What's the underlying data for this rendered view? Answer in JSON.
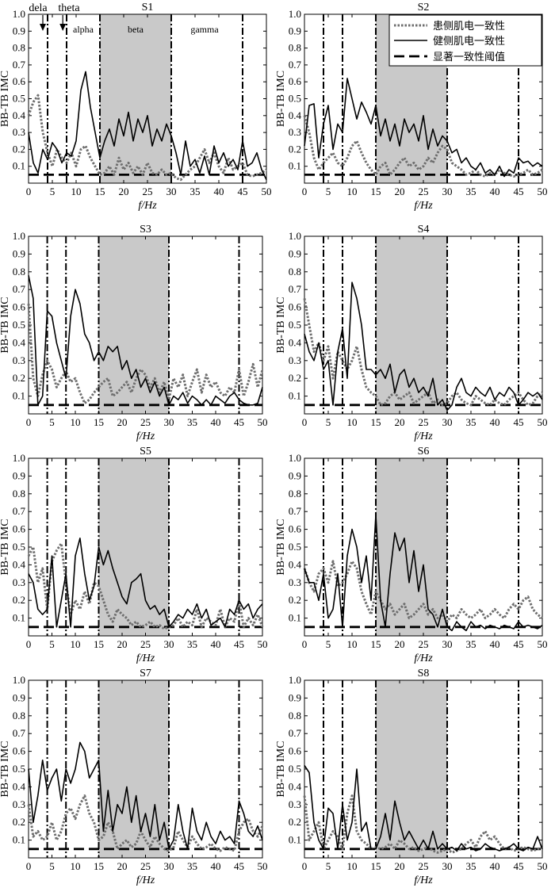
{
  "chart_data": {
    "type": "line",
    "x_label": "f/Hz",
    "y_label": "BB-TB IMC",
    "xlim": [
      0,
      50
    ],
    "ylim": [
      0,
      1.0
    ],
    "x_ticks": [
      0,
      5,
      10,
      15,
      20,
      25,
      30,
      35,
      40,
      45,
      50
    ],
    "y_ticks": [
      "0.1",
      "0.2",
      "0.3",
      "0.4",
      "0.5",
      "0.6",
      "0.7",
      "0.8",
      "0.9",
      "1.0"
    ],
    "x": [
      0,
      1,
      2,
      3,
      4,
      5,
      6,
      7,
      8,
      9,
      10,
      11,
      12,
      13,
      14,
      15,
      16,
      17,
      18,
      19,
      20,
      21,
      22,
      23,
      24,
      25,
      26,
      27,
      28,
      29,
      30,
      31,
      32,
      33,
      34,
      35,
      36,
      37,
      38,
      39,
      40,
      41,
      42,
      43,
      44,
      45,
      46,
      47,
      48,
      49,
      50
    ],
    "legend": {
      "placement": "top-right of S2",
      "entries": [
        "患侧肌电一致性",
        "健侧肌电一致性",
        "显著一致性阈值"
      ]
    },
    "series_styles": {
      "affected": "gray dotted",
      "healthy": "black solid",
      "threshold": "black dashed"
    },
    "band_annotations": {
      "top_labels": [
        "dela",
        "theta"
      ],
      "inside_labels": [
        "alpha",
        "beta",
        "gamma"
      ]
    },
    "panels": [
      {
        "title": "S1",
        "vlines": [
          4,
          8,
          15,
          30,
          45
        ],
        "shaded": [
          15,
          30
        ],
        "threshold": 0.05,
        "affected": [
          0.4,
          0.48,
          0.52,
          0.3,
          0.18,
          0.1,
          0.2,
          0.15,
          0.12,
          0.18,
          0.1,
          0.2,
          0.22,
          0.15,
          0.1,
          0.05,
          0.06,
          0.1,
          0.05,
          0.15,
          0.08,
          0.12,
          0.06,
          0.1,
          0.05,
          0.12,
          0.06,
          0.05,
          0.08,
          0.05,
          0.06,
          0.03,
          0.02,
          0.05,
          0.08,
          0.1,
          0.15,
          0.2,
          0.12,
          0.18,
          0.1,
          0.06,
          0.15,
          0.08,
          0.1,
          0.12,
          0.05,
          0.04,
          0.05,
          0.06,
          0.08
        ],
        "healthy": [
          0.3,
          0.12,
          0.06,
          0.2,
          0.14,
          0.24,
          0.2,
          0.12,
          0.18,
          0.16,
          0.25,
          0.55,
          0.66,
          0.45,
          0.3,
          0.15,
          0.25,
          0.32,
          0.22,
          0.38,
          0.28,
          0.42,
          0.25,
          0.38,
          0.3,
          0.4,
          0.22,
          0.32,
          0.25,
          0.35,
          0.28,
          0.18,
          0.05,
          0.25,
          0.1,
          0.14,
          0.06,
          0.16,
          0.05,
          0.22,
          0.12,
          0.18,
          0.1,
          0.14,
          0.08,
          0.25,
          0.1,
          0.12,
          0.18,
          0.08,
          0.02
        ]
      },
      {
        "title": "S2",
        "vlines": [
          4,
          8,
          15,
          30,
          45
        ],
        "shaded": [
          15,
          30
        ],
        "threshold": 0.05,
        "affected": [
          0.4,
          0.3,
          0.15,
          0.08,
          0.12,
          0.15,
          0.18,
          0.12,
          0.1,
          0.15,
          0.22,
          0.25,
          0.18,
          0.12,
          0.08,
          0.05,
          0.1,
          0.12,
          0.05,
          0.08,
          0.12,
          0.15,
          0.1,
          0.12,
          0.08,
          0.1,
          0.15,
          0.12,
          0.18,
          0.22,
          0.2,
          0.12,
          0.1,
          0.08,
          0.05,
          0.06,
          0.08,
          0.05,
          0.04,
          0.06,
          0.05,
          0.08,
          0.06,
          0.05,
          0.04,
          0.05,
          0.06,
          0.08,
          0.05,
          0.06,
          0.08
        ],
        "healthy": [
          0.22,
          0.46,
          0.47,
          0.15,
          0.35,
          0.46,
          0.2,
          0.35,
          0.3,
          0.62,
          0.5,
          0.38,
          0.48,
          0.42,
          0.35,
          0.46,
          0.28,
          0.38,
          0.25,
          0.35,
          0.22,
          0.38,
          0.3,
          0.35,
          0.25,
          0.4,
          0.2,
          0.32,
          0.22,
          0.28,
          0.25,
          0.18,
          0.2,
          0.12,
          0.15,
          0.1,
          0.08,
          0.12,
          0.06,
          0.08,
          0.05,
          0.1,
          0.04,
          0.08,
          0.06,
          0.15,
          0.12,
          0.13,
          0.1,
          0.12,
          0.1
        ]
      },
      {
        "title": "S3",
        "vlines": [
          4,
          8,
          15,
          30,
          45
        ],
        "shaded": [
          15,
          30
        ],
        "threshold": 0.05,
        "affected": [
          0.62,
          0.2,
          0.1,
          0.22,
          0.3,
          0.25,
          0.15,
          0.2,
          0.24,
          0.18,
          0.2,
          0.12,
          0.06,
          0.08,
          0.12,
          0.15,
          0.18,
          0.2,
          0.1,
          0.12,
          0.15,
          0.18,
          0.12,
          0.2,
          0.25,
          0.22,
          0.15,
          0.2,
          0.12,
          0.18,
          0.08,
          0.2,
          0.15,
          0.22,
          0.1,
          0.18,
          0.25,
          0.12,
          0.22,
          0.15,
          0.18,
          0.12,
          0.1,
          0.15,
          0.12,
          0.25,
          0.1,
          0.18,
          0.28,
          0.15,
          0.25
        ],
        "healthy": [
          0.78,
          0.65,
          0.05,
          0.1,
          0.58,
          0.55,
          0.4,
          0.3,
          0.2,
          0.55,
          0.7,
          0.62,
          0.45,
          0.4,
          0.3,
          0.35,
          0.3,
          0.38,
          0.35,
          0.38,
          0.25,
          0.3,
          0.2,
          0.25,
          0.15,
          0.2,
          0.12,
          0.18,
          0.1,
          0.15,
          0.05,
          0.1,
          0.08,
          0.12,
          0.06,
          0.1,
          0.08,
          0.05,
          0.08,
          0.05,
          0.1,
          0.08,
          0.06,
          0.1,
          0.12,
          0.08,
          0.06,
          0.05,
          0.05,
          0.06,
          0.15
        ]
      },
      {
        "title": "S4",
        "vlines": [
          4,
          8,
          15,
          30,
          45
        ],
        "shaded": [
          15,
          30
        ],
        "threshold": 0.05,
        "affected": [
          0.65,
          0.5,
          0.35,
          0.4,
          0.3,
          0.38,
          0.2,
          0.35,
          0.3,
          0.25,
          0.3,
          0.38,
          0.25,
          0.15,
          0.12,
          0.1,
          0.05,
          0.06,
          0.1,
          0.12,
          0.08,
          0.1,
          0.12,
          0.06,
          0.08,
          0.1,
          0.12,
          0.06,
          0.08,
          0.05,
          0.06,
          0.1,
          0.12,
          0.08,
          0.06,
          0.05,
          0.1,
          0.08,
          0.06,
          0.05,
          0.08,
          0.06,
          0.05,
          0.08,
          0.1,
          0.12,
          0.08,
          0.05,
          0.06,
          0.1,
          0.12
        ],
        "healthy": [
          0.45,
          0.35,
          0.3,
          0.4,
          0.25,
          0.3,
          0.05,
          0.35,
          0.48,
          0.2,
          0.74,
          0.65,
          0.5,
          0.25,
          0.25,
          0.22,
          0.25,
          0.2,
          0.28,
          0.12,
          0.22,
          0.25,
          0.15,
          0.2,
          0.12,
          0.15,
          0.1,
          0.2,
          0.05,
          0.08,
          0.02,
          0.05,
          0.15,
          0.2,
          0.12,
          0.1,
          0.15,
          0.12,
          0.1,
          0.15,
          0.08,
          0.12,
          0.1,
          0.15,
          0.12,
          0.05,
          0.08,
          0.12,
          0.1,
          0.12,
          0.08
        ]
      },
      {
        "title": "S5",
        "vlines": [
          4,
          8,
          15,
          30,
          45
        ],
        "shaded": [
          15,
          30
        ],
        "threshold": 0.05,
        "affected": [
          0.45,
          0.5,
          0.3,
          0.38,
          0.15,
          0.42,
          0.48,
          0.52,
          0.3,
          0.12,
          0.2,
          0.15,
          0.25,
          0.18,
          0.3,
          0.28,
          0.2,
          0.12,
          0.08,
          0.15,
          0.12,
          0.1,
          0.06,
          0.08,
          0.05,
          0.06,
          0.08,
          0.05,
          0.06,
          0.04,
          0.05,
          0.06,
          0.1,
          0.05,
          0.08,
          0.06,
          0.15,
          0.05,
          0.1,
          0.08,
          0.06,
          0.15,
          0.05,
          0.1,
          0.08,
          0.2,
          0.05,
          0.1,
          0.06,
          0.12,
          0.05
        ],
        "healthy": [
          0.35,
          0.3,
          0.15,
          0.12,
          0.15,
          0.45,
          0.05,
          0.2,
          0.35,
          0.05,
          0.45,
          0.55,
          0.35,
          0.2,
          0.28,
          0.5,
          0.4,
          0.48,
          0.38,
          0.3,
          0.22,
          0.18,
          0.3,
          0.32,
          0.35,
          0.2,
          0.15,
          0.17,
          0.12,
          0.15,
          0.05,
          0.08,
          0.12,
          0.1,
          0.15,
          0.12,
          0.18,
          0.1,
          0.15,
          0.06,
          0.08,
          0.1,
          0.05,
          0.15,
          0.12,
          0.2,
          0.15,
          0.18,
          0.1,
          0.15,
          0.18
        ]
      },
      {
        "title": "S6",
        "vlines": [
          4,
          8,
          15,
          30,
          45
        ],
        "shaded": [
          15,
          30
        ],
        "threshold": 0.05,
        "affected": [
          0.38,
          0.3,
          0.25,
          0.35,
          0.38,
          0.3,
          0.42,
          0.28,
          0.3,
          0.35,
          0.42,
          0.38,
          0.25,
          0.18,
          0.12,
          0.25,
          0.2,
          0.15,
          0.18,
          0.12,
          0.15,
          0.18,
          0.1,
          0.12,
          0.15,
          0.18,
          0.12,
          0.15,
          0.1,
          0.12,
          0.08,
          0.12,
          0.1,
          0.15,
          0.12,
          0.1,
          0.12,
          0.15,
          0.1,
          0.12,
          0.15,
          0.12,
          0.1,
          0.15,
          0.18,
          0.15,
          0.2,
          0.22,
          0.15,
          0.12,
          0.1
        ],
        "healthy": [
          0.38,
          0.3,
          0.3,
          0.2,
          0.35,
          0.1,
          0.15,
          0.35,
          0.05,
          0.45,
          0.6,
          0.5,
          0.3,
          0.45,
          0.2,
          0.68,
          0.2,
          0.05,
          0.35,
          0.58,
          0.48,
          0.55,
          0.3,
          0.48,
          0.25,
          0.4,
          0.15,
          0.12,
          0.05,
          0.15,
          0.05,
          0.03,
          0.08,
          0.05,
          0.03,
          0.08,
          0.05,
          0.06,
          0.04,
          0.06,
          0.05,
          0.04,
          0.06,
          0.05,
          0.04,
          0.08,
          0.05,
          0.06,
          0.05,
          0.04,
          0.06
        ]
      },
      {
        "title": "S7",
        "vlines": [
          4,
          8,
          15,
          30,
          45
        ],
        "shaded": [
          15,
          30
        ],
        "threshold": 0.05,
        "affected": [
          0.3,
          0.12,
          0.15,
          0.1,
          0.12,
          0.2,
          0.1,
          0.15,
          0.25,
          0.28,
          0.22,
          0.3,
          0.35,
          0.25,
          0.2,
          0.1,
          0.12,
          0.2,
          0.15,
          0.05,
          0.08,
          0.1,
          0.06,
          0.08,
          0.15,
          0.1,
          0.06,
          0.12,
          0.08,
          0.05,
          0.04,
          0.06,
          0.15,
          0.1,
          0.06,
          0.12,
          0.08,
          0.05,
          0.06,
          0.08,
          0.05,
          0.04,
          0.06,
          0.05,
          0.04,
          0.15,
          0.2,
          0.22,
          0.15,
          0.12,
          0.18
        ],
        "healthy": [
          0.5,
          0.2,
          0.35,
          0.55,
          0.38,
          0.45,
          0.5,
          0.32,
          0.5,
          0.42,
          0.5,
          0.65,
          0.6,
          0.45,
          0.5,
          0.55,
          0.15,
          0.38,
          0.15,
          0.3,
          0.25,
          0.4,
          0.2,
          0.35,
          0.15,
          0.25,
          0.12,
          0.3,
          0.1,
          0.2,
          0.05,
          0.1,
          0.3,
          0.15,
          0.05,
          0.28,
          0.15,
          0.1,
          0.2,
          0.12,
          0.08,
          0.15,
          0.1,
          0.12,
          0.08,
          0.32,
          0.25,
          0.15,
          0.12,
          0.18,
          0.1
        ]
      },
      {
        "title": "S8",
        "vlines": [
          4,
          8,
          15,
          30,
          45
        ],
        "shaded": [
          15,
          30
        ],
        "threshold": 0.05,
        "affected": [
          0.35,
          0.1,
          0.15,
          0.2,
          0.05,
          0.1,
          0.15,
          0.12,
          0.05,
          0.25,
          0.35,
          0.15,
          0.1,
          0.08,
          0.05,
          0.06,
          0.05,
          0.06,
          0.08,
          0.05,
          0.1,
          0.08,
          0.05,
          0.06,
          0.04,
          0.05,
          0.06,
          0.04,
          0.03,
          0.04,
          0.05,
          0.03,
          0.04,
          0.05,
          0.08,
          0.1,
          0.06,
          0.12,
          0.15,
          0.1,
          0.12,
          0.08,
          0.05,
          0.06,
          0.04,
          0.05,
          0.06,
          0.05,
          0.04,
          0.05,
          0.06
        ],
        "healthy": [
          0.52,
          0.48,
          0.2,
          0.1,
          0.05,
          0.28,
          0.25,
          0.05,
          0.3,
          0.1,
          0.2,
          0.5,
          0.15,
          0.2,
          0.05,
          0.05,
          0.12,
          0.25,
          0.1,
          0.32,
          0.2,
          0.1,
          0.15,
          0.1,
          0.05,
          0.1,
          0.05,
          0.15,
          0.05,
          0.08,
          0.05,
          0.06,
          0.04,
          0.08,
          0.05,
          0.06,
          0.04,
          0.05,
          0.08,
          0.06,
          0.05,
          0.04,
          0.05,
          0.06,
          0.08,
          0.05,
          0.04,
          0.06,
          0.05,
          0.12,
          0.05
        ]
      }
    ]
  }
}
